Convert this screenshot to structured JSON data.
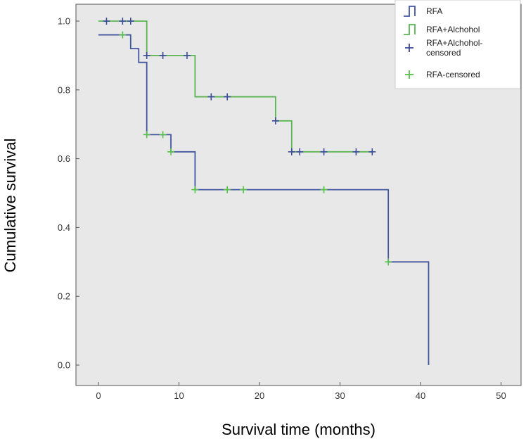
{
  "chart_data": {
    "type": "line",
    "subtype": "kaplan-meier step",
    "xlabel": "Survival time (months)",
    "ylabel": "Cumulative survival",
    "xlim": [
      0,
      50
    ],
    "ylim": [
      0.0,
      1.0
    ],
    "xticks": [
      0,
      10,
      20,
      30,
      40,
      50
    ],
    "yticks": [
      0.0,
      0.2,
      0.4,
      0.6,
      0.8,
      1.0
    ],
    "xtick_labels": [
      "0",
      "10",
      "20",
      "30",
      "40",
      "50"
    ],
    "ytick_labels": [
      "0.0",
      "0.2",
      "0.4",
      "0.6",
      "0.8",
      "1.0"
    ],
    "grid": false,
    "legend_position": "top-right",
    "plot_background": "#e8e8e8",
    "series": [
      {
        "name": "RFA",
        "color": "#4455a0",
        "steps": [
          [
            0,
            0.96
          ],
          [
            4,
            0.92
          ],
          [
            5,
            0.88
          ],
          [
            6,
            0.67
          ],
          [
            9,
            0.62
          ],
          [
            12,
            0.51
          ],
          [
            36,
            0.3
          ],
          [
            41,
            0.0
          ]
        ],
        "x_end": 41
      },
      {
        "name": "RFA+Alchohol",
        "color": "#5ab552",
        "steps": [
          [
            0,
            1.0
          ],
          [
            6,
            0.9
          ],
          [
            12,
            0.78
          ],
          [
            22,
            0.71
          ],
          [
            24,
            0.62
          ]
        ],
        "x_end": 34
      }
    ],
    "censored": [
      {
        "name": "RFA+Alchohol-censored",
        "color": "#3a4a9a",
        "points": [
          [
            1,
            1.0
          ],
          [
            3,
            1.0
          ],
          [
            4,
            1.0
          ],
          [
            6,
            0.9
          ],
          [
            8,
            0.9
          ],
          [
            11,
            0.9
          ],
          [
            14,
            0.78
          ],
          [
            16,
            0.78
          ],
          [
            22,
            0.71
          ],
          [
            24,
            0.62
          ],
          [
            25,
            0.62
          ],
          [
            28,
            0.62
          ],
          [
            32,
            0.62
          ],
          [
            34,
            0.62
          ]
        ]
      },
      {
        "name": "RFA-censored",
        "color": "#55c247",
        "points": [
          [
            3,
            0.96
          ],
          [
            6,
            0.67
          ],
          [
            8,
            0.67
          ],
          [
            9,
            0.62
          ],
          [
            12,
            0.51
          ],
          [
            16,
            0.51
          ],
          [
            18,
            0.51
          ],
          [
            28,
            0.51
          ],
          [
            36,
            0.3
          ]
        ]
      }
    ],
    "legend": [
      {
        "label": "RFA",
        "kind": "line",
        "color": "#4455a0"
      },
      {
        "label": "RFA+Alchohol",
        "kind": "line",
        "color": "#5ab552"
      },
      {
        "label": "RFA+Alchohol-censored",
        "lines": [
          "RFA+Alchohol-",
          "censored"
        ],
        "kind": "cross",
        "color": "#3a4a9a"
      },
      {
        "label": "RFA-censored",
        "kind": "cross",
        "color": "#55c247"
      }
    ]
  }
}
